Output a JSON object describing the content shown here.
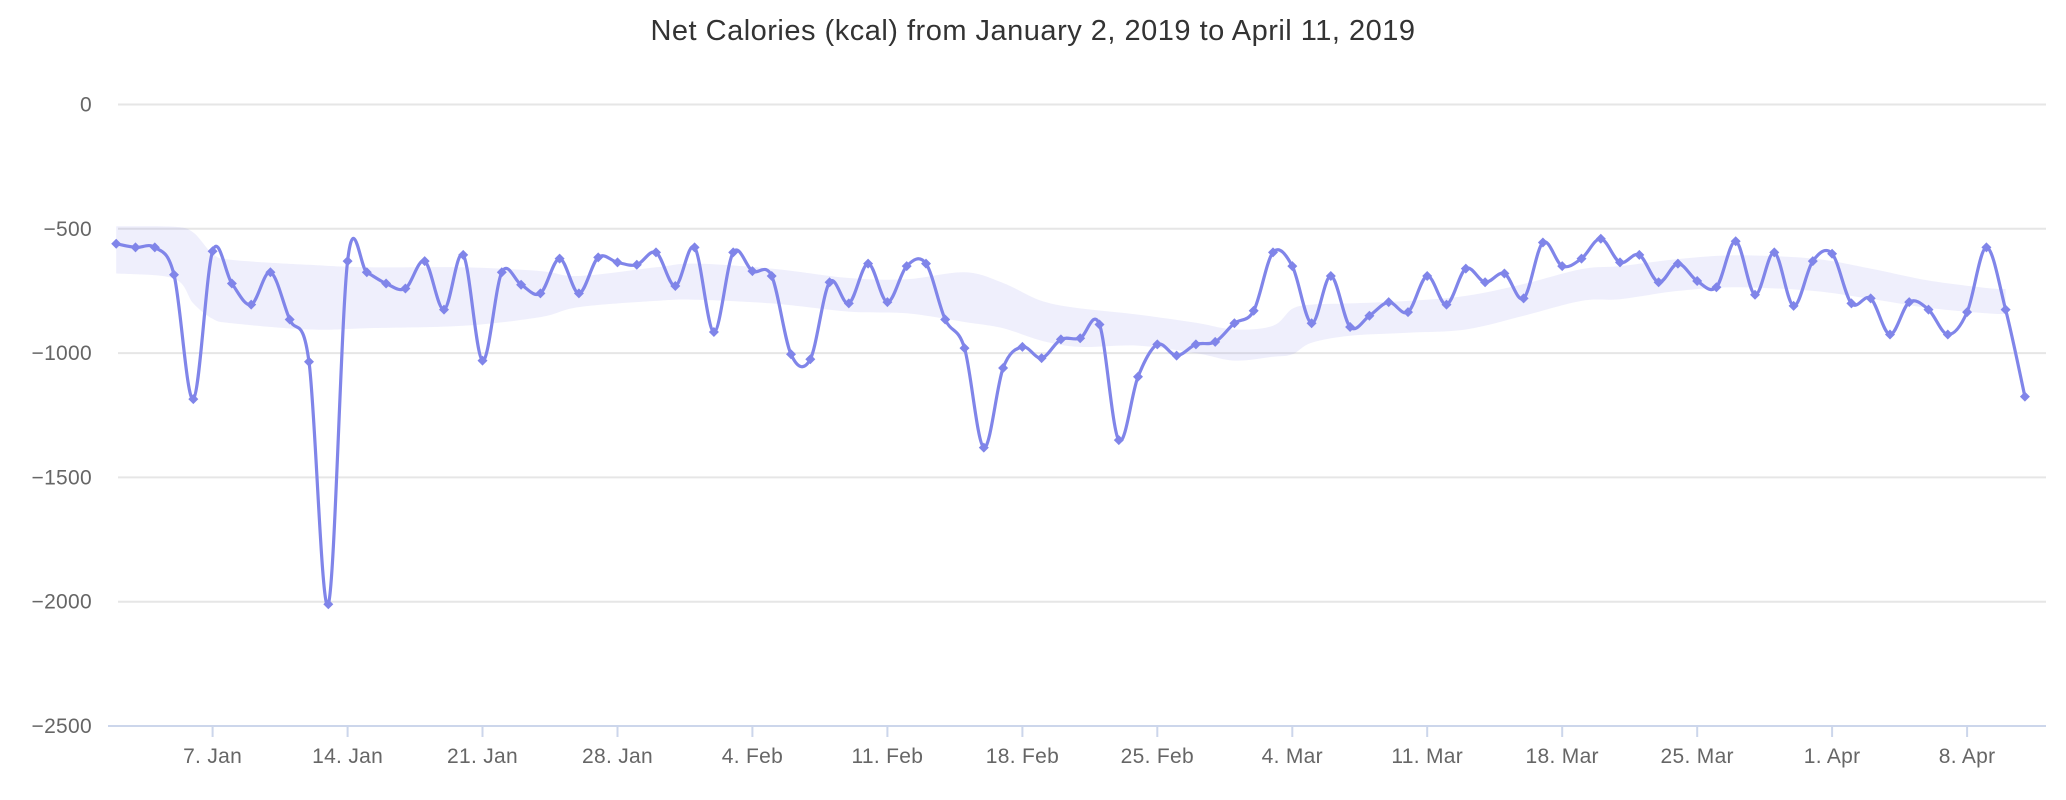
{
  "chart_data": {
    "type": "line",
    "title": "Net Calories (kcal) from January 2, 2019 to April 11, 2019",
    "xlabel": "",
    "ylabel": "",
    "start_date": "2019-01-02",
    "end_date": "2019-04-11",
    "x_interval": "1 day",
    "ylim": [
      -2500,
      0
    ],
    "grid": true,
    "legend": false,
    "y_ticks": [
      {
        "value": 0,
        "label": "0"
      },
      {
        "value": -500,
        "label": "−500"
      },
      {
        "value": -1000,
        "label": "−1000"
      },
      {
        "value": -1500,
        "label": "−1500"
      },
      {
        "value": -2000,
        "label": "−2000"
      },
      {
        "value": -2500,
        "label": "−2500"
      }
    ],
    "x_ticks": [
      {
        "day": 5,
        "label": "7. Jan"
      },
      {
        "day": 12,
        "label": "14. Jan"
      },
      {
        "day": 19,
        "label": "21. Jan"
      },
      {
        "day": 26,
        "label": "28. Jan"
      },
      {
        "day": 33,
        "label": "4. Feb"
      },
      {
        "day": 40,
        "label": "11. Feb"
      },
      {
        "day": 47,
        "label": "18. Feb"
      },
      {
        "day": 54,
        "label": "25. Feb"
      },
      {
        "day": 61,
        "label": "4. Mar"
      },
      {
        "day": 68,
        "label": "11. Mar"
      },
      {
        "day": 75,
        "label": "18. Mar"
      },
      {
        "day": 82,
        "label": "25. Mar"
      },
      {
        "day": 89,
        "label": "1. Apr"
      },
      {
        "day": 96,
        "label": "8. Apr"
      }
    ],
    "series": [
      {
        "name": "Net Calories",
        "type": "spline",
        "color": "#8085e9",
        "marker": "diamond",
        "values": [
          -560,
          -575,
          -575,
          -685,
          -1185,
          -590,
          -720,
          -805,
          -675,
          -865,
          -1035,
          -2010,
          -630,
          -675,
          -720,
          -740,
          -630,
          -825,
          -605,
          -1030,
          -675,
          -725,
          -760,
          -620,
          -760,
          -615,
          -635,
          -645,
          -595,
          -730,
          -575,
          -915,
          -595,
          -670,
          -690,
          -1005,
          -1025,
          -715,
          -800,
          -640,
          -795,
          -650,
          -640,
          -865,
          -980,
          -1380,
          -1060,
          -975,
          -1020,
          -945,
          -940,
          -885,
          -1350,
          -1095,
          -965,
          -1010,
          -965,
          -955,
          -880,
          -830,
          -595,
          -650,
          -880,
          -690,
          -895,
          -850,
          -795,
          -835,
          -690,
          -805,
          -660,
          -715,
          -680,
          -780,
          -555,
          -650,
          -620,
          -540,
          -635,
          -605,
          -715,
          -640,
          -710,
          -735,
          -550,
          -765,
          -595,
          -810,
          -630,
          -600,
          -800,
          -780,
          -925,
          -795,
          -825,
          -925,
          -835,
          -575,
          -825,
          -1175
        ]
      },
      {
        "name": "Rolling range band",
        "type": "arearange",
        "color": "#8085e9",
        "fill_opacity": 0.13,
        "points_day_upper_lower": [
          [
            0,
            -490,
            -680
          ],
          [
            3,
            -492,
            -700
          ],
          [
            4,
            -515,
            -800
          ],
          [
            5,
            -600,
            -862
          ],
          [
            6,
            -625,
            -880
          ],
          [
            10,
            -645,
            -905
          ],
          [
            13,
            -655,
            -900
          ],
          [
            18,
            -655,
            -890
          ],
          [
            22,
            -670,
            -855
          ],
          [
            24,
            -690,
            -815
          ],
          [
            28,
            -655,
            -790
          ],
          [
            30,
            -640,
            -785
          ],
          [
            34,
            -660,
            -800
          ],
          [
            38,
            -698,
            -833
          ],
          [
            41,
            -703,
            -840
          ],
          [
            44,
            -675,
            -875
          ],
          [
            46,
            -718,
            -900
          ],
          [
            48,
            -790,
            -950
          ],
          [
            50,
            -820,
            -975
          ],
          [
            53,
            -845,
            -970
          ],
          [
            56,
            -878,
            -1000
          ],
          [
            58,
            -905,
            -1030
          ],
          [
            60,
            -890,
            -1015
          ],
          [
            61,
            -822,
            -1005
          ],
          [
            62,
            -805,
            -958
          ],
          [
            64,
            -800,
            -930
          ],
          [
            67,
            -790,
            -918
          ],
          [
            70,
            -770,
            -905
          ],
          [
            73,
            -722,
            -850
          ],
          [
            76,
            -662,
            -790
          ],
          [
            78,
            -650,
            -783
          ],
          [
            81,
            -622,
            -750
          ],
          [
            84,
            -607,
            -735
          ],
          [
            88,
            -620,
            -750
          ],
          [
            91,
            -660,
            -782
          ],
          [
            94,
            -708,
            -818
          ],
          [
            97,
            -738,
            -840
          ],
          [
            98,
            -742,
            -843
          ]
        ]
      }
    ]
  },
  "colors": {
    "line": "#8085e9",
    "band_fill": "rgba(128,133,233,0.13)",
    "grid_line": "#e6e6e6",
    "axis_line": "#ccd6eb",
    "tick_mark": "#ccd6eb",
    "axis_text": "#666666",
    "title_text": "#333333",
    "background": "#ffffff"
  }
}
